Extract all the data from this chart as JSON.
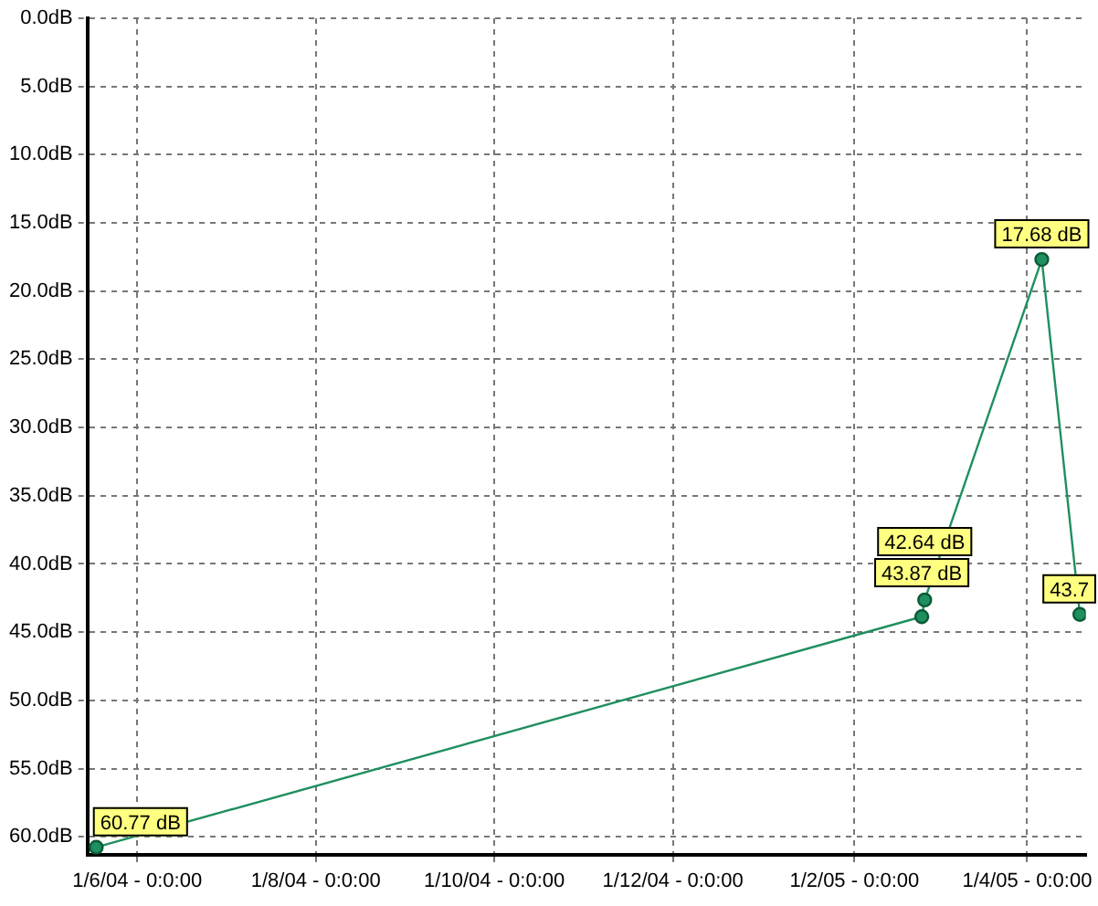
{
  "chart_data": {
    "type": "line",
    "x": [
      "2004-05-18",
      "2005-02-24",
      "2005-02-25",
      "2005-04-06",
      "2005-04-19"
    ],
    "series": [
      {
        "color": "#1f8f5f",
        "values": [
          60.77,
          43.87,
          42.64,
          17.68,
          43.7
        ],
        "value_labels": [
          "60.77 dB",
          "43.87 dB",
          "42.64 dB",
          "17.68 dB",
          "43.7"
        ]
      }
    ],
    "xlim": [
      "2004-05-15",
      "2005-04-21"
    ],
    "xticks": [
      {
        "value": "2004-06-01",
        "label": "1/6/04 - 0:0:00"
      },
      {
        "value": "2004-08-01",
        "label": "1/8/04 - 0:0:00"
      },
      {
        "value": "2004-10-01",
        "label": "1/10/04 - 0:0:00"
      },
      {
        "value": "2004-12-01",
        "label": "1/12/04 - 0:0:00"
      },
      {
        "value": "2005-02-01",
        "label": "1/2/05 - 0:0:00"
      },
      {
        "value": "2005-04-01",
        "label": "1/4/05 - 0:0:00"
      }
    ],
    "ylim": [
      61.3,
      0
    ],
    "yticks": [
      {
        "value": 0,
        "label": "0.0dB"
      },
      {
        "value": 5,
        "label": "5.0dB"
      },
      {
        "value": 10,
        "label": "10.0dB"
      },
      {
        "value": 15,
        "label": "15.0dB"
      },
      {
        "value": 20,
        "label": "20.0dB"
      },
      {
        "value": 25,
        "label": "25.0dB"
      },
      {
        "value": 30,
        "label": "30.0dB"
      },
      {
        "value": 35,
        "label": "35.0dB"
      },
      {
        "value": 40,
        "label": "40.0dB"
      },
      {
        "value": 45,
        "label": "45.0dB"
      },
      {
        "value": 50,
        "label": "50.0dB"
      },
      {
        "value": 55,
        "label": "55.0dB"
      },
      {
        "value": 60,
        "label": "60.0dB"
      }
    ],
    "grid": true,
    "legend": false,
    "marker": "circle",
    "line_style": "solid"
  }
}
